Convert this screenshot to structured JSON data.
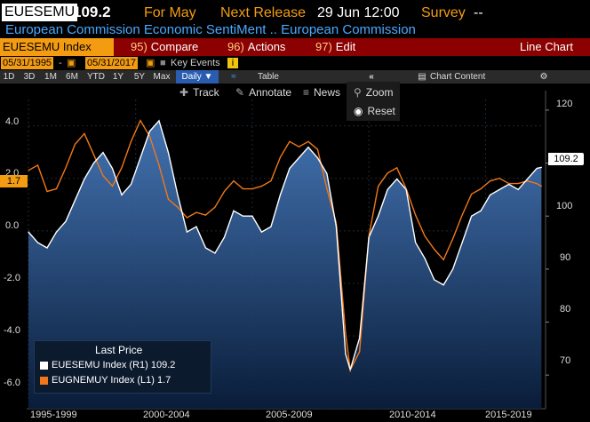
{
  "header": {
    "ticker": "EUESEMU",
    "last_value": "109.2",
    "for_label": "For May",
    "next_release_label": "Next Release",
    "next_release_value": "29 Jun 12:00",
    "survey_label": "Survey",
    "survey_value": "--"
  },
  "subtitle": "European Commission Economic SentiMent .. European Commission",
  "toolbar": {
    "security": "EUESEMU Index",
    "compare_num": "95)",
    "compare_label": "Compare",
    "actions_num": "96)",
    "actions_label": "Actions",
    "edit_num": "97)",
    "edit_label": "Edit",
    "chart_type": "Line Chart"
  },
  "date_range": {
    "start": "05/31/1995",
    "sep": "-",
    "end": "05/31/2017",
    "key_events": "Key Events"
  },
  "timeframes": [
    "1D",
    "3D",
    "1M",
    "6M",
    "YTD",
    "1Y",
    "5Y",
    "Max"
  ],
  "period": "Daily ▼",
  "table_label": "Table",
  "chart_content": "Chart Content",
  "tools": {
    "track": "Track",
    "annotate": "Annotate",
    "news": "News",
    "zoom": "Zoom",
    "reset": "Reset"
  },
  "legend": {
    "title": "Last Price",
    "row1": "EUESEMU Index  (R1)   109.2",
    "row2": "EUGNEMUY Index  (L1)    1.7",
    "color1": "#ffffff",
    "color2": "#f07818"
  },
  "badges": {
    "left": "1.7",
    "right": "109.2"
  },
  "left_axis": [
    "4.0",
    "2.0",
    "0.0",
    "-2.0",
    "-4.0",
    "-6.0"
  ],
  "right_axis": [
    "120",
    "110",
    "100",
    "90",
    "80",
    "70"
  ],
  "x_axis": [
    "1995-1999",
    "2000-2004",
    "2005-2009",
    "2010-2014",
    "2015-2019"
  ],
  "chart_data": {
    "type": "line",
    "series": [
      {
        "name": "EUESEMU Index (R1)",
        "axis": "right",
        "color": "#ffffff",
        "x": [
          1995.4,
          1995.8,
          1996.2,
          1996.6,
          1997.0,
          1997.4,
          1997.8,
          1998.2,
          1998.6,
          1999.0,
          1999.4,
          1999.8,
          2000.2,
          2000.6,
          2001.0,
          2001.4,
          2001.8,
          2002.2,
          2002.6,
          2003.0,
          2003.4,
          2003.8,
          2004.2,
          2004.6,
          2005.0,
          2005.4,
          2005.8,
          2006.2,
          2006.6,
          2007.0,
          2007.4,
          2007.8,
          2008.2,
          2008.6,
          2009.0,
          2009.2,
          2009.6,
          2010.0,
          2010.4,
          2010.8,
          2011.2,
          2011.6,
          2012.0,
          2012.4,
          2012.8,
          2013.2,
          2013.6,
          2014.0,
          2014.4,
          2014.8,
          2015.2,
          2015.6,
          2016.0,
          2016.4,
          2016.8,
          2017.2,
          2017.4
        ],
        "values": [
          97,
          95,
          94,
          97,
          99,
          103,
          107,
          110,
          112,
          109,
          104,
          106,
          111,
          116,
          118,
          112,
          104,
          97,
          98,
          94,
          93,
          96,
          101,
          100,
          100,
          97,
          98,
          104,
          109,
          111,
          113,
          111,
          108,
          98,
          74,
          71,
          77,
          96,
          100,
          105,
          107,
          105,
          95,
          92,
          88,
          87,
          90,
          95,
          100,
          101,
          104,
          105,
          106,
          105,
          107,
          109,
          109.2
        ]
      },
      {
        "name": "EUGNEMUY Index (L1)",
        "axis": "left",
        "color": "#f07818",
        "x": [
          1995.4,
          1995.8,
          1996.2,
          1996.6,
          1997.0,
          1997.4,
          1997.8,
          1998.2,
          1998.6,
          1999.0,
          1999.4,
          1999.8,
          2000.2,
          2000.6,
          2001.0,
          2001.4,
          2001.8,
          2002.2,
          2002.6,
          2003.0,
          2003.4,
          2003.8,
          2004.2,
          2004.6,
          2005.0,
          2005.4,
          2005.8,
          2006.2,
          2006.6,
          2007.0,
          2007.4,
          2007.8,
          2008.2,
          2008.6,
          2009.0,
          2009.2,
          2009.6,
          2010.0,
          2010.4,
          2010.8,
          2011.2,
          2011.6,
          2012.0,
          2012.4,
          2012.8,
          2013.2,
          2013.6,
          2014.0,
          2014.4,
          2014.8,
          2015.2,
          2015.6,
          2016.0,
          2016.4,
          2016.8,
          2017.2,
          2017.4
        ],
        "values": [
          2.3,
          2.5,
          1.5,
          1.6,
          2.4,
          3.3,
          3.7,
          2.9,
          2.1,
          1.7,
          2.4,
          3.4,
          4.2,
          3.6,
          2.5,
          1.2,
          0.9,
          0.5,
          0.7,
          0.6,
          0.9,
          1.5,
          1.9,
          1.6,
          1.6,
          1.7,
          1.9,
          2.8,
          3.4,
          3.2,
          3.4,
          3.1,
          1.6,
          0.3,
          -3.9,
          -5.3,
          -4.6,
          -0.2,
          1.7,
          2.2,
          2.4,
          1.6,
          0.6,
          -0.2,
          -0.7,
          -1.1,
          -0.3,
          0.6,
          1.4,
          1.6,
          1.9,
          2.0,
          1.8,
          1.8,
          1.9,
          1.8,
          1.7
        ]
      }
    ],
    "xlim": [
      1995.4,
      2017.5
    ],
    "ylim_left": [
      -6.5,
      5.0
    ],
    "ylim_right": [
      65,
      122
    ],
    "grid": true,
    "legend": "bottom-left"
  }
}
